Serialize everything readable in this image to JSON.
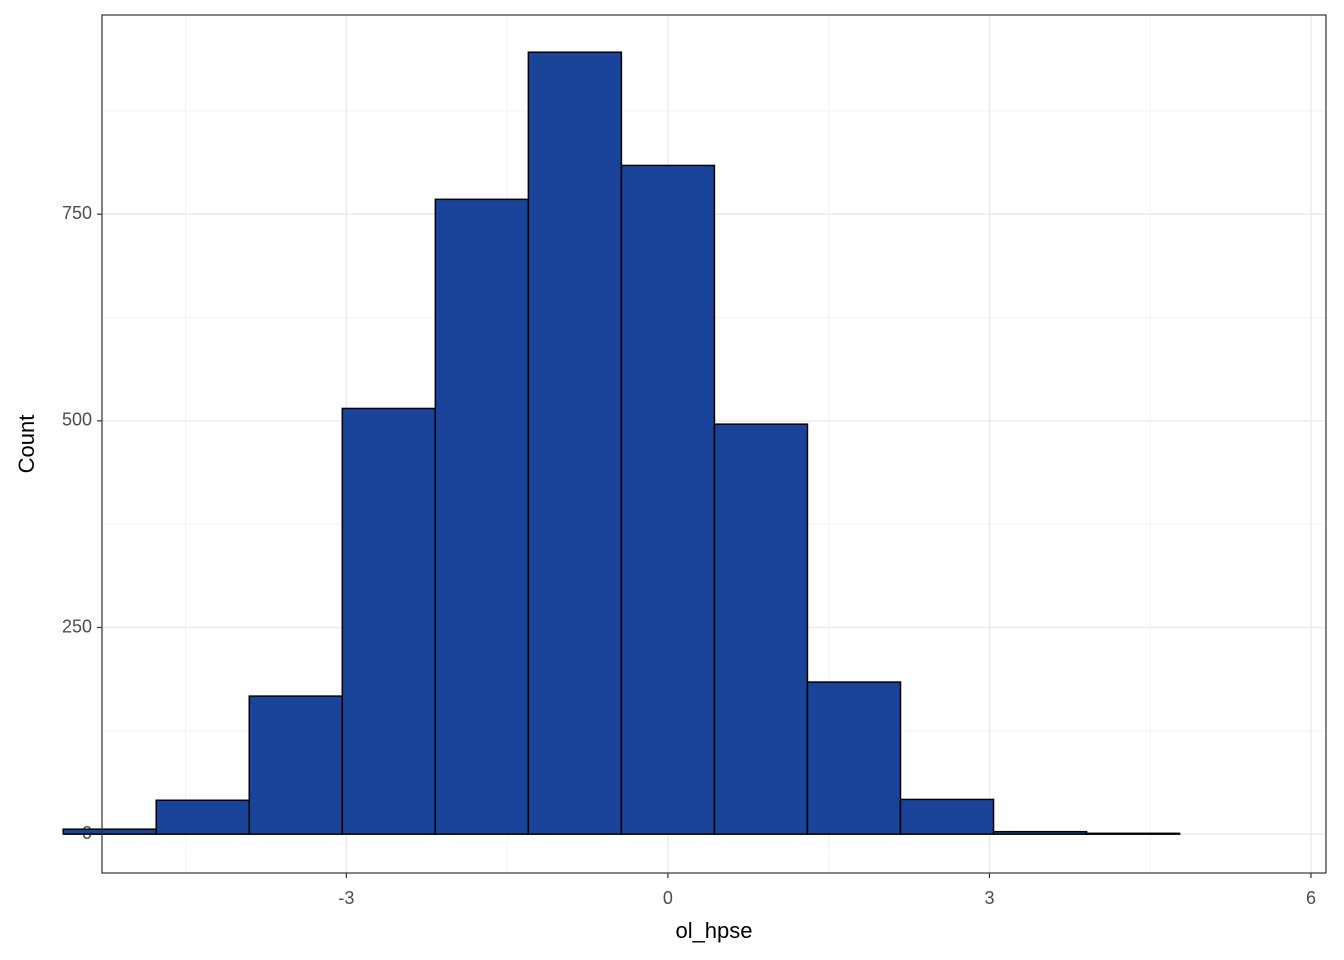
{
  "chart_data": {
    "type": "histogram",
    "x_label": "ol_hpse",
    "y_label": "Count",
    "bins": [
      -5.642,
      -4.774,
      -3.906,
      -3.038,
      -2.17,
      -1.302,
      -0.434,
      0.434,
      1.302,
      2.17,
      3.038,
      3.906,
      4.774,
      5.642
    ],
    "counts": [
      6,
      41,
      167,
      515,
      768,
      946,
      809,
      496,
      184,
      42,
      3,
      1,
      0
    ],
    "color": "#1a449a",
    "edge_color": "#000000",
    "xlim": [
      -5.28,
      6.14
    ],
    "ylim": [
      -47,
      991
    ],
    "xticks": [
      -3,
      0,
      3,
      6
    ],
    "yticks": [
      0,
      250,
      500,
      750
    ],
    "grid": true,
    "minor_grid": true
  }
}
